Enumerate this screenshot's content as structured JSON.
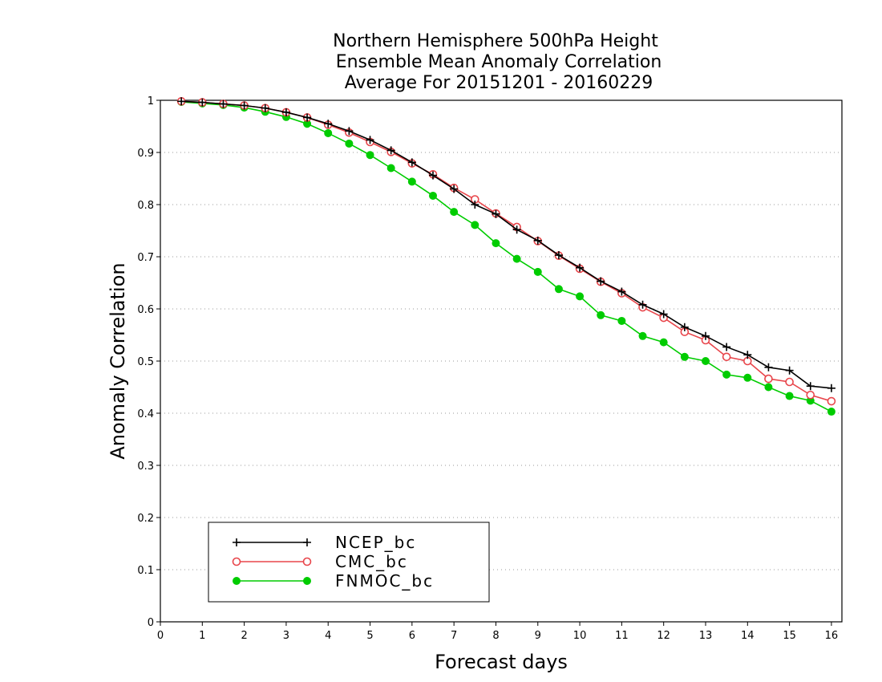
{
  "chart_data": {
    "type": "line",
    "title": [
      "Northern Hemisphere 500hPa Height",
      "Ensemble Mean Anomaly Correlation",
      "Average For 20151201 - 20160229"
    ],
    "xlabel": "Forecast days",
    "ylabel": "Anomaly Correlation",
    "xlim": [
      0,
      16.25
    ],
    "ylim": [
      0,
      1
    ],
    "x_ticks": [
      "0",
      "1",
      "2",
      "3",
      "4",
      "5",
      "6",
      "7",
      "8",
      "9",
      "10",
      "11",
      "12",
      "13",
      "14",
      "15",
      "16"
    ],
    "y_ticks": [
      "0",
      "0.1",
      "0.2",
      "0.3",
      "0.4",
      "0.5",
      "0.6",
      "0.7",
      "0.8",
      "0.9",
      "1"
    ],
    "grid": "horizontal dotted",
    "legend_position": "bottom-left",
    "x": [
      0.5,
      1,
      1.5,
      2,
      2.5,
      3,
      3.5,
      4,
      4.5,
      5,
      5.5,
      6,
      6.5,
      7,
      7.5,
      8,
      8.5,
      9,
      9.5,
      10,
      10.5,
      11,
      11.5,
      12,
      12.5,
      13,
      13.5,
      14,
      14.5,
      15,
      15.5,
      16
    ],
    "series": [
      {
        "name": "NCEP_bc",
        "color": "#000000",
        "marker": "plus",
        "values": [
          0.998,
          0.996,
          0.993,
          0.99,
          0.985,
          0.977,
          0.967,
          0.955,
          0.941,
          0.924,
          0.904,
          0.881,
          0.856,
          0.83,
          0.8,
          0.782,
          0.752,
          0.731,
          0.703,
          0.679,
          0.653,
          0.633,
          0.608,
          0.59,
          0.565,
          0.548,
          0.527,
          0.512,
          0.488,
          0.482,
          0.452,
          0.448
        ]
      },
      {
        "name": "CMC_bc",
        "color": "#e8464b",
        "marker": "open-circle",
        "values": [
          0.998,
          0.996,
          0.993,
          0.99,
          0.985,
          0.977,
          0.967,
          0.953,
          0.938,
          0.92,
          0.901,
          0.879,
          0.858,
          0.832,
          0.81,
          0.783,
          0.757,
          0.73,
          0.702,
          0.677,
          0.652,
          0.63,
          0.603,
          0.583,
          0.556,
          0.54,
          0.508,
          0.5,
          0.466,
          0.46,
          0.435,
          0.423
        ]
      },
      {
        "name": "FNMOC_bc",
        "color": "#00cc00",
        "marker": "filled-circle",
        "values": [
          0.997,
          0.994,
          0.991,
          0.986,
          0.978,
          0.968,
          0.955,
          0.937,
          0.917,
          0.895,
          0.87,
          0.844,
          0.817,
          0.786,
          0.761,
          0.726,
          0.696,
          0.671,
          0.638,
          0.624,
          0.588,
          0.577,
          0.548,
          0.536,
          0.508,
          0.5,
          0.474,
          0.468,
          0.45,
          0.433,
          0.424,
          0.403
        ]
      }
    ]
  }
}
